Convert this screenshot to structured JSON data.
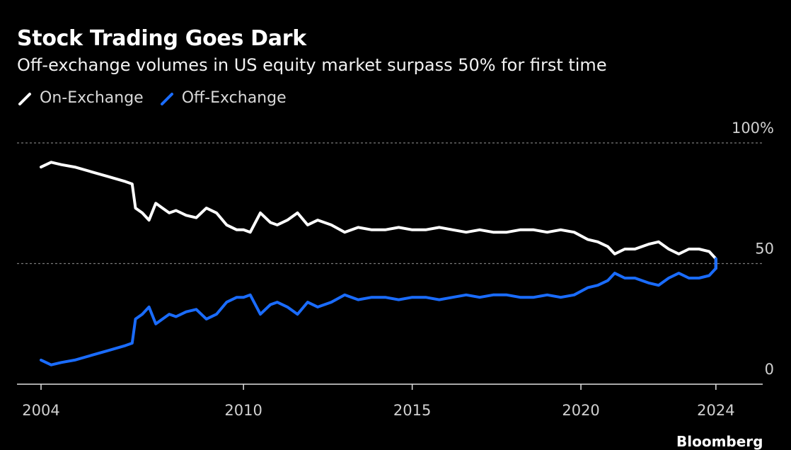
{
  "chart_data": {
    "type": "line",
    "title": "Stock Trading Goes Dark",
    "subtitle": "Off-exchange volumes in US equity market surpass 50% for first time",
    "xlabel": "",
    "ylabel": "",
    "xlim": [
      2004,
      2026.1
    ],
    "ylim": [
      0,
      100
    ],
    "x_ticks": [
      2004,
      2010,
      2015,
      2020,
      2024
    ],
    "x_tick_labels": [
      "2004",
      "2010",
      "2015",
      "2020",
      "2024"
    ],
    "y_ticks": [
      0,
      50,
      100
    ],
    "y_tick_labels": [
      "0",
      "50",
      "100%"
    ],
    "legend_position": "top-left",
    "series": [
      {
        "name": "On-Exchange",
        "color": "#ffffff",
        "x": [
          2004.0,
          2004.3,
          2004.6,
          2005.0,
          2005.5,
          2006.0,
          2006.5,
          2006.7,
          2006.8,
          2007.0,
          2007.2,
          2007.4,
          2007.6,
          2007.8,
          2008.0,
          2008.3,
          2008.6,
          2008.9,
          2009.2,
          2009.5,
          2009.8,
          2010.0,
          2010.2,
          2010.5,
          2010.8,
          2011.0,
          2011.3,
          2011.6,
          2011.9,
          2012.2,
          2012.6,
          2013.0,
          2013.4,
          2013.8,
          2014.2,
          2014.6,
          2015.0,
          2015.4,
          2015.8,
          2016.2,
          2016.6,
          2017.0,
          2017.4,
          2017.8,
          2018.2,
          2018.6,
          2019.0,
          2019.4,
          2019.8,
          2020.2,
          2020.5,
          2020.8,
          2021.0,
          2021.3,
          2021.6,
          2022.0,
          2022.3,
          2022.6,
          2022.9,
          2023.2,
          2023.5,
          2023.8,
          2024.0
        ],
        "values": [
          90,
          92,
          91,
          90,
          88,
          86,
          84,
          83,
          73,
          71,
          68,
          75,
          73,
          71,
          72,
          70,
          69,
          73,
          71,
          66,
          64,
          64,
          63,
          71,
          67,
          66,
          68,
          71,
          66,
          68,
          66,
          63,
          65,
          64,
          64,
          65,
          64,
          64,
          65,
          64,
          63,
          64,
          63,
          63,
          64,
          64,
          63,
          64,
          63,
          60,
          59,
          57,
          54,
          56,
          56,
          58,
          59,
          56,
          54,
          56,
          56,
          55,
          52
        ],
        "final_value": 48
      },
      {
        "name": "Off-Exchange",
        "color": "#1a6cff",
        "x": [
          2004.0,
          2004.3,
          2004.6,
          2005.0,
          2005.5,
          2006.0,
          2006.5,
          2006.7,
          2006.8,
          2007.0,
          2007.2,
          2007.4,
          2007.6,
          2007.8,
          2008.0,
          2008.3,
          2008.6,
          2008.9,
          2009.2,
          2009.5,
          2009.8,
          2010.0,
          2010.2,
          2010.5,
          2010.8,
          2011.0,
          2011.3,
          2011.6,
          2011.9,
          2012.2,
          2012.6,
          2013.0,
          2013.4,
          2013.8,
          2014.2,
          2014.6,
          2015.0,
          2015.4,
          2015.8,
          2016.2,
          2016.6,
          2017.0,
          2017.4,
          2017.8,
          2018.2,
          2018.6,
          2019.0,
          2019.4,
          2019.8,
          2020.2,
          2020.5,
          2020.8,
          2021.0,
          2021.3,
          2021.6,
          2022.0,
          2022.3,
          2022.6,
          2022.9,
          2023.2,
          2023.5,
          2023.8,
          2024.0
        ],
        "values": [
          10,
          8,
          9,
          10,
          12,
          14,
          16,
          17,
          27,
          29,
          32,
          25,
          27,
          29,
          28,
          30,
          31,
          27,
          29,
          34,
          36,
          36,
          37,
          29,
          33,
          34,
          32,
          29,
          34,
          32,
          34,
          37,
          35,
          36,
          36,
          35,
          36,
          36,
          35,
          36,
          37,
          36,
          37,
          37,
          36,
          36,
          37,
          36,
          37,
          40,
          41,
          43,
          46,
          44,
          44,
          42,
          41,
          44,
          46,
          44,
          44,
          45,
          48
        ],
        "final_value": 52
      }
    ]
  },
  "source_label": "Bloomberg"
}
